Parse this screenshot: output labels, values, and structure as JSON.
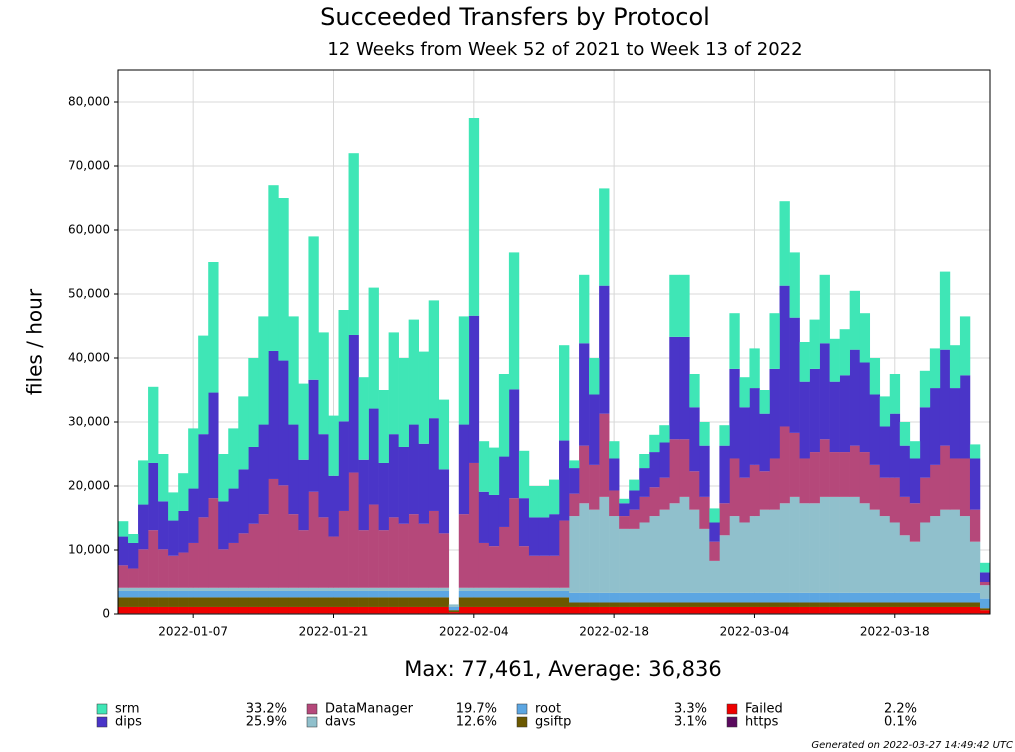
{
  "chart_data": {
    "type": "stacked_bar",
    "title": "Succeeded Transfers by Protocol",
    "subtitle": "12 Weeks from Week 52 of 2021 to Week 13 of 2022",
    "y_label": "files / hour",
    "summary": "Max: 77,461, Average: 36,836",
    "footer": "Generated on 2022-03-27 14:49:42 UTC",
    "grid": true,
    "ylim": [
      0,
      85000
    ],
    "yticks": [
      0,
      {
        "value": 10000,
        "label": "10,000"
      },
      {
        "value": 20000,
        "label": "20,000"
      },
      {
        "value": 30000,
        "label": "30,000"
      },
      {
        "value": 40000,
        "label": "40,000"
      },
      {
        "value": 50000,
        "label": "50,000"
      },
      {
        "value": 60000,
        "label": "60,000"
      },
      {
        "value": 70000,
        "label": "70,000"
      },
      {
        "value": 80000,
        "label": "80,000"
      }
    ],
    "xticks": [
      "2022-01-07",
      "2022-01-21",
      "2022-02-04",
      "2022-02-18",
      "2022-03-04",
      "2022-03-18"
    ],
    "x": [
      "2021-12-31",
      "2022-01-01",
      "2022-01-02",
      "2022-01-03",
      "2022-01-04",
      "2022-01-05",
      "2022-01-06",
      "2022-01-07",
      "2022-01-08",
      "2022-01-09",
      "2022-01-10",
      "2022-01-11",
      "2022-01-12",
      "2022-01-13",
      "2022-01-14",
      "2022-01-15",
      "2022-01-16",
      "2022-01-17",
      "2022-01-18",
      "2022-01-19",
      "2022-01-20",
      "2022-01-21",
      "2022-01-22",
      "2022-01-23",
      "2022-01-24",
      "2022-01-25",
      "2022-01-26",
      "2022-01-27",
      "2022-01-28",
      "2022-01-29",
      "2022-01-30",
      "2022-01-31",
      "2022-02-01",
      "2022-02-02",
      "2022-02-03",
      "2022-02-04",
      "2022-02-05",
      "2022-02-06",
      "2022-02-07",
      "2022-02-08",
      "2022-02-09",
      "2022-02-10",
      "2022-02-11",
      "2022-02-12",
      "2022-02-13",
      "2022-02-14",
      "2022-02-15",
      "2022-02-16",
      "2022-02-17",
      "2022-02-18",
      "2022-02-19",
      "2022-02-20",
      "2022-02-21",
      "2022-02-22",
      "2022-02-23",
      "2022-02-24",
      "2022-02-25",
      "2022-02-26",
      "2022-02-27",
      "2022-02-28",
      "2022-03-01",
      "2022-03-02",
      "2022-03-03",
      "2022-03-04",
      "2022-03-05",
      "2022-03-06",
      "2022-03-07",
      "2022-03-08",
      "2022-03-09",
      "2022-03-10",
      "2022-03-11",
      "2022-03-12",
      "2022-03-13",
      "2022-03-14",
      "2022-03-15",
      "2022-03-16",
      "2022-03-17",
      "2022-03-18",
      "2022-03-19",
      "2022-03-20",
      "2022-03-21",
      "2022-03-22",
      "2022-03-23",
      "2022-03-24",
      "2022-03-25",
      "2022-03-26",
      "2022-03-27"
    ],
    "series": [
      {
        "name": "srm",
        "share": "33.2%",
        "color": "#3fe6b6",
        "values": [
          2400,
          1400,
          6900,
          11900,
          7400,
          4400,
          5900,
          9400,
          15400,
          20400,
          7400,
          9400,
          11400,
          13900,
          16900,
          25900,
          25400,
          16900,
          11900,
          22400,
          15900,
          9400,
          17400,
          28400,
          12900,
          18900,
          11400,
          15900,
          13900,
          16400,
          14400,
          18400,
          10900,
          0,
          16900,
          30900,
          7900,
          7400,
          12900,
          21400,
          7400,
          4900,
          4900,
          5400,
          14900,
          1200,
          10700,
          5700,
          15200,
          2700,
          700,
          1700,
          2200,
          2700,
          2700,
          9700,
          9700,
          5200,
          3700,
          2200,
          3200,
          8700,
          4700,
          6200,
          3700,
          8700,
          13200,
          10200,
          6200,
          7700,
          10700,
          6700,
          7200,
          9200,
          7700,
          5700,
          4700,
          6200,
          3700,
          2700,
          5700,
          6200,
          12200,
          6700,
          9200,
          2200,
          1500
        ]
      },
      {
        "name": "dips",
        "share": "25.9%",
        "color": "#4a35c8",
        "values": [
          4500,
          4000,
          7000,
          10500,
          7500,
          5500,
          6500,
          8500,
          13000,
          16500,
          7500,
          8500,
          10000,
          12000,
          14000,
          20000,
          19500,
          14000,
          11000,
          17500,
          13000,
          9500,
          14000,
          21500,
          11000,
          15000,
          10500,
          13000,
          12000,
          14000,
          12500,
          14500,
          10000,
          0,
          14000,
          23000,
          8000,
          8000,
          11000,
          17000,
          7500,
          6000,
          6000,
          6500,
          12500,
          4000,
          16000,
          11000,
          20000,
          5000,
          2000,
          3000,
          4500,
          5500,
          5500,
          16000,
          16000,
          10000,
          8000,
          3000,
          9000,
          14000,
          11000,
          12000,
          9000,
          14000,
          22000,
          18000,
          12000,
          13000,
          15000,
          11000,
          12000,
          15000,
          14000,
          11000,
          8000,
          10000,
          8000,
          7000,
          11000,
          12000,
          15000,
          11000,
          13000,
          8000,
          1500
        ]
      },
      {
        "name": "DataManager",
        "share": "19.7%",
        "color": "#b5487a",
        "values": [
          3500,
          3000,
          6000,
          9000,
          6000,
          5000,
          5500,
          7000,
          11000,
          14000,
          6000,
          7000,
          8500,
          10000,
          11500,
          17000,
          16000,
          11500,
          9000,
          15000,
          11000,
          8000,
          12000,
          18000,
          9000,
          13000,
          9000,
          11000,
          10000,
          11500,
          10000,
          12000,
          8500,
          0,
          11500,
          19500,
          7000,
          6500,
          9500,
          14000,
          6500,
          5000,
          5000,
          5000,
          10500,
          3500,
          9000,
          7000,
          13000,
          4000,
          2000,
          3000,
          4000,
          4500,
          5000,
          10000,
          9000,
          6000,
          5000,
          3000,
          5000,
          9000,
          7000,
          8000,
          6000,
          8000,
          12000,
          10000,
          7000,
          8000,
          9000,
          7000,
          7000,
          8000,
          8000,
          7000,
          6000,
          7000,
          6000,
          6000,
          7000,
          8000,
          10000,
          8000,
          9000,
          5000,
          500
        ]
      },
      {
        "name": "davs",
        "share": "12.6%",
        "color": "#90c0cc",
        "values": [
          500,
          500,
          500,
          500,
          500,
          500,
          500,
          500,
          500,
          500,
          500,
          500,
          500,
          500,
          500,
          500,
          500,
          500,
          500,
          500,
          500,
          500,
          500,
          500,
          500,
          500,
          500,
          500,
          500,
          500,
          500,
          500,
          500,
          400,
          500,
          500,
          500,
          500,
          500,
          500,
          500,
          500,
          500,
          500,
          500,
          12000,
          14000,
          13000,
          15000,
          12000,
          10000,
          10000,
          11000,
          12000,
          13000,
          14000,
          15000,
          13000,
          10000,
          5000,
          9000,
          12000,
          11000,
          12000,
          13000,
          13000,
          14000,
          15000,
          14000,
          14000,
          15000,
          15000,
          15000,
          15000,
          14000,
          13000,
          12000,
          11000,
          9000,
          8000,
          11000,
          12000,
          13000,
          13000,
          12000,
          8000,
          2100
        ]
      },
      {
        "name": "root",
        "share": "3.3%",
        "color": "#5ca6e2",
        "values": [
          1000,
          1000,
          1000,
          1000,
          1000,
          1000,
          1000,
          1000,
          1000,
          1000,
          1000,
          1000,
          1000,
          1000,
          1000,
          1000,
          1000,
          1000,
          1000,
          1000,
          1000,
          1000,
          1000,
          1000,
          1000,
          1000,
          1000,
          1000,
          1000,
          1000,
          1000,
          1000,
          1000,
          500,
          1000,
          1000,
          1000,
          1000,
          1000,
          1000,
          1000,
          1000,
          1000,
          1000,
          1000,
          1500,
          1500,
          1500,
          1500,
          1500,
          1500,
          1500,
          1500,
          1500,
          1500,
          1500,
          1500,
          1500,
          1500,
          1500,
          1500,
          1500,
          1500,
          1500,
          1500,
          1500,
          1500,
          1500,
          1500,
          1500,
          1500,
          1500,
          1500,
          1500,
          1500,
          1500,
          1500,
          1500,
          1500,
          1500,
          1500,
          1500,
          1500,
          1500,
          1500,
          1500,
          1500
        ]
      },
      {
        "name": "gsiftp",
        "share": "3.1%",
        "color": "#6b5800",
        "values": [
          1500,
          1500,
          1500,
          1500,
          1500,
          1500,
          1500,
          1500,
          1500,
          1500,
          1500,
          1500,
          1500,
          1500,
          1500,
          1500,
          1500,
          1500,
          1500,
          1500,
          1500,
          1500,
          1500,
          1500,
          1500,
          1500,
          1500,
          1500,
          1500,
          1500,
          1500,
          1500,
          1500,
          300,
          1500,
          1500,
          1500,
          1500,
          1500,
          1500,
          1500,
          1500,
          1500,
          1500,
          1500,
          700,
          700,
          700,
          700,
          700,
          700,
          700,
          700,
          700,
          700,
          700,
          700,
          700,
          700,
          700,
          700,
          700,
          700,
          700,
          700,
          700,
          700,
          700,
          700,
          700,
          700,
          700,
          700,
          700,
          700,
          700,
          700,
          700,
          700,
          700,
          700,
          700,
          700,
          700,
          700,
          700,
          300
        ]
      },
      {
        "name": "Failed",
        "share": "2.2%",
        "color": "#ee0000",
        "values": [
          1000,
          1000,
          1000,
          1000,
          1000,
          1000,
          1000,
          1000,
          1000,
          1000,
          1000,
          1000,
          1000,
          1000,
          1000,
          1000,
          1000,
          1000,
          1000,
          1000,
          1000,
          1000,
          1000,
          1000,
          1000,
          1000,
          1000,
          1000,
          1000,
          1000,
          1000,
          1000,
          1000,
          200,
          1000,
          1000,
          1000,
          1000,
          1000,
          1000,
          1000,
          1000,
          1000,
          1000,
          1000,
          1000,
          1000,
          1000,
          1000,
          1000,
          1000,
          1000,
          1000,
          1000,
          1000,
          1000,
          1000,
          1000,
          1000,
          1000,
          1000,
          1000,
          1000,
          1000,
          1000,
          1000,
          1000,
          1000,
          1000,
          1000,
          1000,
          1000,
          1000,
          1000,
          1000,
          1000,
          1000,
          1000,
          1000,
          1000,
          1000,
          1000,
          1000,
          1000,
          1000,
          1000,
          500
        ]
      },
      {
        "name": "https",
        "share": "0.1%",
        "color": "#5a0a5e",
        "values": [
          100,
          100,
          100,
          100,
          100,
          100,
          100,
          100,
          100,
          100,
          100,
          100,
          100,
          100,
          100,
          100,
          100,
          100,
          100,
          100,
          100,
          100,
          100,
          100,
          100,
          100,
          100,
          100,
          100,
          100,
          100,
          100,
          100,
          100,
          100,
          100,
          100,
          100,
          100,
          100,
          100,
          100,
          100,
          100,
          100,
          100,
          100,
          100,
          100,
          100,
          100,
          100,
          100,
          100,
          100,
          100,
          100,
          100,
          100,
          100,
          100,
          100,
          100,
          100,
          100,
          100,
          100,
          100,
          100,
          100,
          100,
          100,
          100,
          100,
          100,
          100,
          100,
          100,
          100,
          100,
          100,
          100,
          100,
          100,
          100,
          100,
          100
        ]
      }
    ]
  }
}
